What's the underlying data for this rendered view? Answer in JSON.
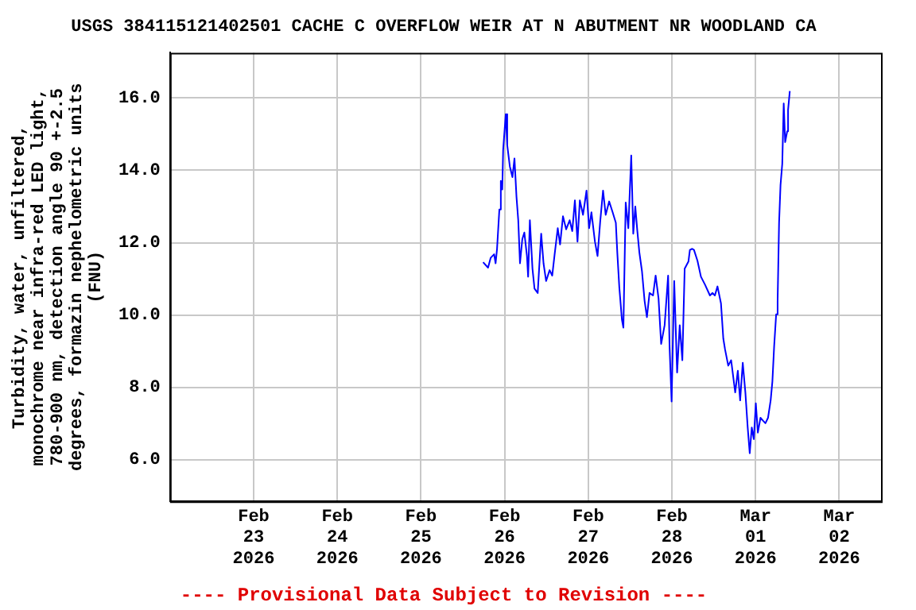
{
  "chart_data": {
    "type": "line",
    "title": "USGS 384115121402501 CACHE C OVERFLOW WEIR AT N ABUTMENT NR WOODLAND CA",
    "ylabel": "Turbidity, water, unfiltered, monochrome near infra-red LED light, 780-900 nm, detection angle 90 +-2.5 degrees, formazin nephelometric units (FNU)",
    "annotations": [
      "---- Provisional Data Subject to Revision ----"
    ],
    "x": [
      "2026-02-25T17:50",
      "2026-02-25T19:15",
      "2026-02-25T20:00",
      "2026-02-25T21:00",
      "2026-02-25T21:25",
      "2026-02-25T21:50",
      "2026-02-25T22:30",
      "2026-02-25T22:55",
      "2026-02-25T23:20",
      "2026-02-25T23:35",
      "2026-02-26T00:20",
      "2026-02-26T00:45",
      "2026-02-26T01:30",
      "2026-02-26T02:15",
      "2026-02-26T02:50",
      "2026-02-26T03:25",
      "2026-02-26T03:55",
      "2026-02-26T04:25",
      "2026-02-26T05:05",
      "2026-02-26T05:40",
      "2026-02-26T06:25",
      "2026-02-26T06:45",
      "2026-02-26T07:15",
      "2026-02-26T08:00",
      "2026-02-26T08:35",
      "2026-02-26T09:30",
      "2026-02-26T10:30",
      "2026-02-26T11:10",
      "2026-02-26T11:55",
      "2026-02-26T12:55",
      "2026-02-26T13:40",
      "2026-02-26T14:20",
      "2026-02-26T15:15",
      "2026-02-26T15:55",
      "2026-02-26T16:45",
      "2026-02-26T17:40",
      "2026-02-26T18:40",
      "2026-02-26T19:25",
      "2026-02-26T20:10",
      "2026-02-26T20:55",
      "2026-02-26T21:35",
      "2026-02-26T22:30",
      "2026-02-26T23:30",
      "2026-02-27T00:15",
      "2026-02-27T00:55",
      "2026-02-27T01:55",
      "2026-02-27T02:40",
      "2026-02-27T03:25",
      "2026-02-27T04:15",
      "2026-02-27T05:00",
      "2026-02-27T06:00",
      "2026-02-27T07:00",
      "2026-02-27T07:55",
      "2026-02-27T08:20",
      "2026-02-27T08:55",
      "2026-02-27T09:40",
      "2026-02-27T10:05",
      "2026-02-27T10:45",
      "2026-02-27T11:30",
      "2026-02-27T12:20",
      "2026-02-27T12:55",
      "2026-02-27T13:30",
      "2026-02-27T14:05",
      "2026-02-27T14:40",
      "2026-02-27T15:25",
      "2026-02-27T16:10",
      "2026-02-27T16:50",
      "2026-02-27T17:35",
      "2026-02-27T18:35",
      "2026-02-27T19:20",
      "2026-02-27T20:10",
      "2026-02-27T20:55",
      "2026-02-27T21:55",
      "2026-02-27T22:55",
      "2026-02-27T23:20",
      "2026-02-27T23:55",
      "2026-02-28T00:40",
      "2026-02-28T01:30",
      "2026-02-28T02:15",
      "2026-02-28T03:00",
      "2026-02-28T03:40",
      "2026-02-28T04:45",
      "2026-02-28T05:10",
      "2026-02-28T05:50",
      "2026-02-28T06:20",
      "2026-02-28T07:20",
      "2026-02-28T08:20",
      "2026-02-28T09:30",
      "2026-02-28T10:55",
      "2026-02-28T11:40",
      "2026-02-28T12:20",
      "2026-02-28T13:05",
      "2026-02-28T14:05",
      "2026-02-28T14:45",
      "2026-02-28T15:15",
      "2026-02-28T16:10",
      "2026-02-28T17:00",
      "2026-02-28T18:10",
      "2026-02-28T18:55",
      "2026-02-28T19:35",
      "2026-02-28T20:20",
      "2026-02-28T21:05",
      "2026-02-28T21:45",
      "2026-02-28T22:20",
      "2026-02-28T22:55",
      "2026-02-28T23:30",
      "2026-03-01T00:05",
      "2026-03-01T00:40",
      "2026-03-01T01:25",
      "2026-03-01T02:15",
      "2026-03-01T02:50",
      "2026-03-01T03:35",
      "2026-03-01T04:20",
      "2026-03-01T04:50",
      "2026-03-01T05:20",
      "2026-03-01T05:55",
      "2026-03-01T06:20",
      "2026-03-01T06:45",
      "2026-03-01T07:10",
      "2026-03-01T07:40",
      "2026-03-01T08:05",
      "2026-03-01T08:30",
      "2026-03-01T09:05",
      "2026-03-01T09:20",
      "2026-03-01T09:50"
    ],
    "series": [
      {
        "color": "#0000ff",
        "values": [
          11.46,
          11.31,
          11.58,
          11.68,
          11.43,
          11.83,
          12.92,
          13.71,
          13.47,
          14.56,
          15.55,
          14.7,
          14.11,
          13.81,
          14.33,
          13.26,
          12.62,
          11.43,
          12.1,
          12.28,
          11.63,
          11.06,
          12.62,
          11.28,
          10.73,
          10.61,
          12.25,
          11.43,
          10.94,
          11.24,
          11.09,
          11.66,
          12.4,
          11.95,
          12.73,
          12.37,
          12.62,
          12.32,
          13.17,
          12.03,
          13.17,
          12.77,
          13.44,
          12.4,
          12.84,
          12.03,
          11.63,
          12.57,
          13.44,
          12.77,
          13.14,
          12.84,
          12.55,
          11.73,
          10.76,
          9.87,
          9.65,
          13.11,
          12.4,
          14.41,
          12.25,
          13.0,
          12.32,
          11.73,
          11.21,
          10.39,
          9.94,
          10.61,
          10.54,
          11.09,
          10.46,
          9.2,
          9.72,
          11.09,
          9.13,
          7.61,
          10.94,
          8.41,
          9.72,
          8.75,
          11.28,
          11.48,
          11.8,
          11.83,
          11.8,
          11.5,
          11.06,
          10.84,
          10.54,
          10.61,
          10.54,
          10.79,
          10.32,
          9.35,
          9.05,
          8.6,
          8.75,
          7.86,
          8.46,
          7.64,
          8.68,
          7.86,
          6.89,
          6.18,
          6.89,
          6.57,
          7.56,
          6.75,
          7.16,
          7.07,
          7.01,
          7.16,
          7.64,
          8.16,
          9.13,
          10.02,
          10.39,
          12.55,
          13.59,
          14.18,
          15.85,
          14.78,
          15.08,
          15.67,
          16.19
        ]
      }
    ],
    "xlim": [
      "2026-02-22T00:00",
      "2026-03-02T12:00"
    ],
    "xticks": [
      {
        "value": "2026-02-23",
        "label": "Feb 23 2026"
      },
      {
        "value": "2026-02-24",
        "label": "Feb 24 2026"
      },
      {
        "value": "2026-02-25",
        "label": "Feb 25 2026"
      },
      {
        "value": "2026-02-26",
        "label": "Feb 26 2026"
      },
      {
        "value": "2026-02-27",
        "label": "Feb 27 2026"
      },
      {
        "value": "2026-02-28",
        "label": "Feb 28 2026"
      },
      {
        "value": "2026-03-01",
        "label": "Mar 01 2026"
      },
      {
        "value": "2026-03-02",
        "label": "Mar 02 2026"
      }
    ],
    "ylim": [
      4.85,
      17.25
    ],
    "yticks": [
      {
        "value": 6,
        "label": "6.0"
      },
      {
        "value": 8,
        "label": "8.0"
      },
      {
        "value": 10,
        "label": "10.0"
      },
      {
        "value": 12,
        "label": "12.0"
      },
      {
        "value": 14,
        "label": "14.0"
      },
      {
        "value": 16,
        "label": "16.0"
      }
    ],
    "grid": true
  }
}
